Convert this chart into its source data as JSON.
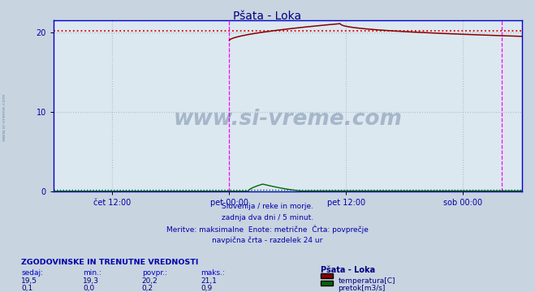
{
  "title": "Pšata - Loka",
  "title_color": "#000080",
  "bg_color": "#c8d4e0",
  "plot_bg_color": "#dce8f0",
  "grid_color": "#b0bcc8",
  "grid_style": ":",
  "spine_color": "#0000cc",
  "xlabel_ticks": [
    "čet 12:00",
    "pet 00:00",
    "pet 12:00",
    "sob 00:00"
  ],
  "xlabel_tick_positions": [
    0.125,
    0.375,
    0.625,
    0.875
  ],
  "ylim": [
    0,
    21.5
  ],
  "yticks": [
    0,
    10,
    20
  ],
  "temp_color": "#880000",
  "flow_color": "#006600",
  "dotted_ref_color": "#dd0000",
  "dotted_ref_value": 20.2,
  "flow_dotted_ref_value": 0.2,
  "flow_dotted_color": "#006600",
  "vline_color": "#ff00ff",
  "vline_positions": [
    0.375,
    0.9583
  ],
  "watermark_text": "www.si-vreme.com",
  "watermark_color": "#1a3a6a",
  "watermark_alpha": 0.28,
  "subtitle_lines": [
    "Slovenija / reke in morje.",
    "zadnja dva dni / 5 minut.",
    "Meritve: maksimalne  Enote: metrične  Črta: povprečje",
    "navpična črta - razdelek 24 ur"
  ],
  "subtitle_color": "#0000aa",
  "table_header": "ZGODOVINSKE IN TRENUTNE VREDNOSTI",
  "table_header_color": "#0000aa",
  "col_headers": [
    "sedaj:",
    "min.:",
    "povpr.:",
    "maks.:"
  ],
  "col_header_color": "#0000cc",
  "row1_vals": [
    "19,5",
    "19,3",
    "20,2",
    "21,1"
  ],
  "row2_vals": [
    "0,1",
    "0,0",
    "0,2",
    "0,9"
  ],
  "station_label": "Pšata - Loka",
  "legend_temp": "temperatura[C]",
  "legend_flow": "pretok[m3/s]",
  "left_label": "www.si-vreme.com",
  "n_points": 576,
  "tick_label_color": "#0000aa"
}
